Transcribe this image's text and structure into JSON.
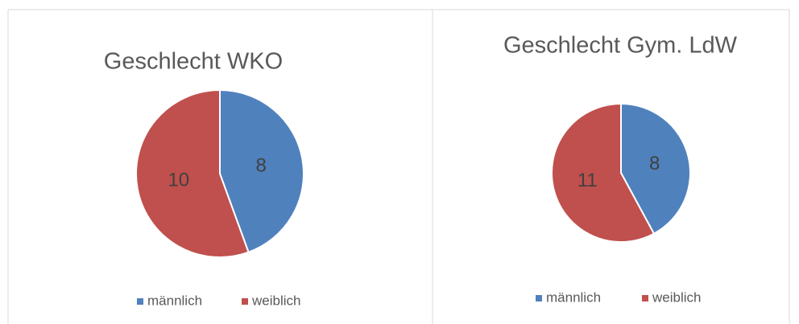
{
  "chart_data": [
    {
      "type": "pie",
      "title": "Geschlecht WKO",
      "categories": [
        "männlich",
        "weiblich"
      ],
      "values": [
        8,
        10
      ],
      "colors": [
        "#4f81bd",
        "#c0504d"
      ],
      "legend": "bottom"
    },
    {
      "type": "pie",
      "title": "Geschlecht Gym. LdW",
      "categories": [
        "männlich",
        "weiblich"
      ],
      "values": [
        8,
        11
      ],
      "colors": [
        "#4f81bd",
        "#c0504d"
      ],
      "legend": "bottom"
    }
  ]
}
